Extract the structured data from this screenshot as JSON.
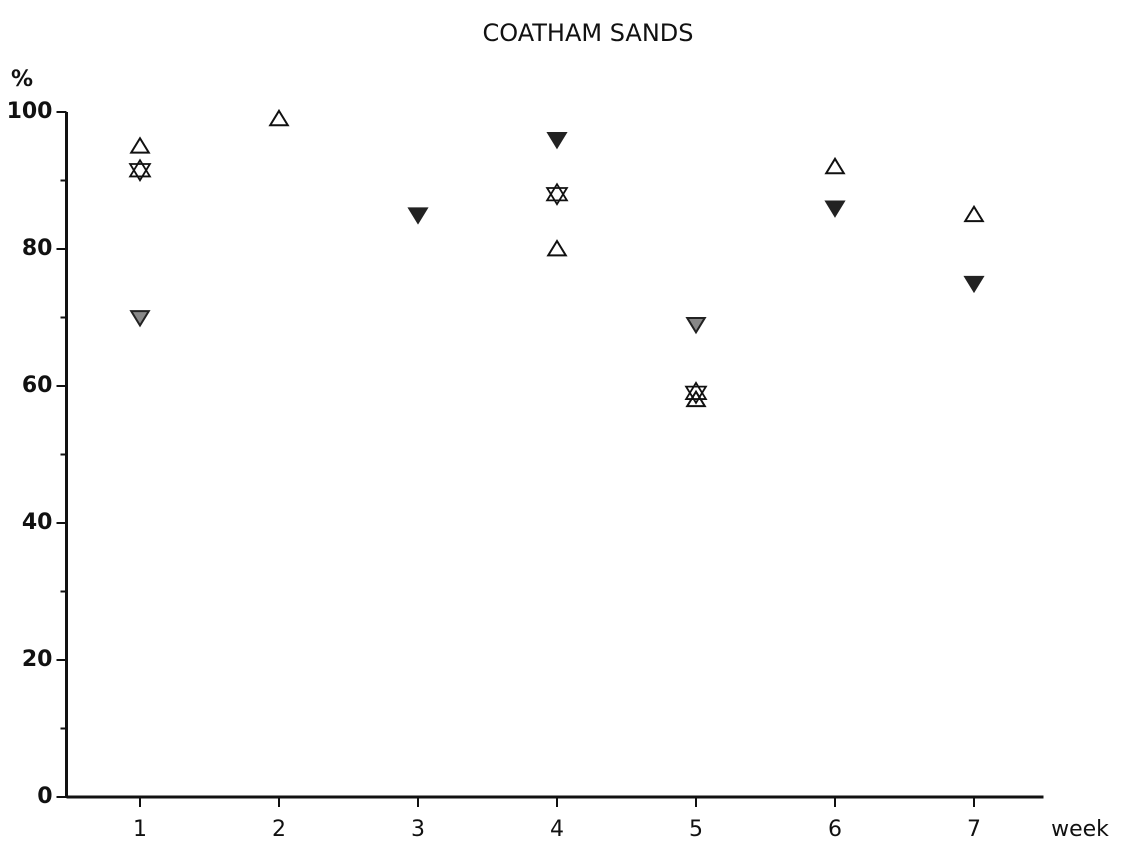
{
  "chart_data": {
    "type": "scatter",
    "title": "COATHAM SANDS",
    "ylabel": "%",
    "xlabel": "week",
    "xlim": [
      0.5,
      7.5
    ],
    "xticks": [
      1,
      2,
      3,
      4,
      5,
      6,
      7
    ],
    "ylim": [
      0,
      100
    ],
    "yticks": [
      0,
      20,
      40,
      60,
      80,
      100
    ],
    "yminorticks": [
      10,
      30,
      50,
      70,
      90
    ],
    "series": [
      {
        "marker": "triangle-up-open",
        "color": "#111111",
        "x": [
          1,
          2,
          4,
          5,
          6,
          7
        ],
        "values": [
          95,
          99,
          80,
          58,
          92,
          85
        ]
      },
      {
        "marker": "star-open",
        "color": "#111111",
        "x": [
          1,
          4,
          5
        ],
        "values": [
          91.5,
          88,
          59
        ]
      },
      {
        "marker": "triangle-down-filled",
        "color": "#222222",
        "x": [
          3,
          4,
          6,
          7
        ],
        "values": [
          85,
          96,
          86,
          75
        ]
      },
      {
        "marker": "triangle-down-grey",
        "color": "#222222",
        "x": [
          1,
          5
        ],
        "values": [
          70,
          69
        ]
      }
    ]
  }
}
